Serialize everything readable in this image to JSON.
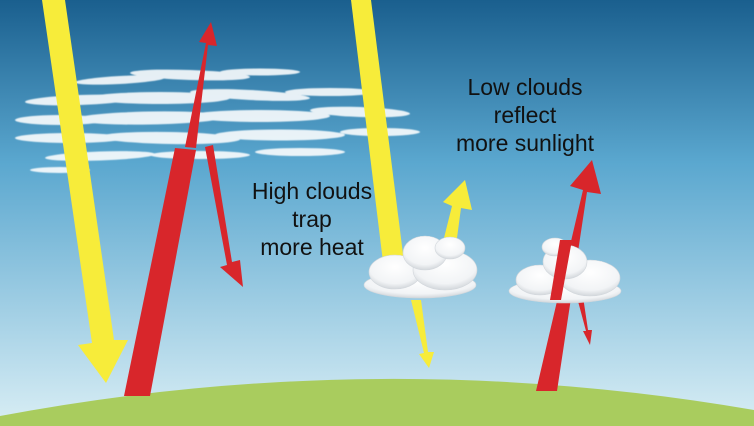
{
  "labels": {
    "high_clouds": [
      "High clouds",
      "trap",
      "more heat"
    ],
    "low_clouds": [
      "Low clouds",
      "reflect",
      "more sunlight"
    ]
  },
  "colors": {
    "sky_top": "#1a5f8e",
    "sky_mid": "#5aa7cf",
    "sky_bottom": "#d9eef5",
    "ground": "#a9cc5e",
    "sunlight_arrow": "#f7ec3a",
    "heat_arrow": "#d8262b",
    "cloud": "#ffffff",
    "text": "#111111"
  },
  "icons": {
    "sunlight": "yellow-arrow",
    "heat": "red-arrow",
    "cloud": "cumulus-cloud",
    "cirrus": "wispy-cloud"
  }
}
